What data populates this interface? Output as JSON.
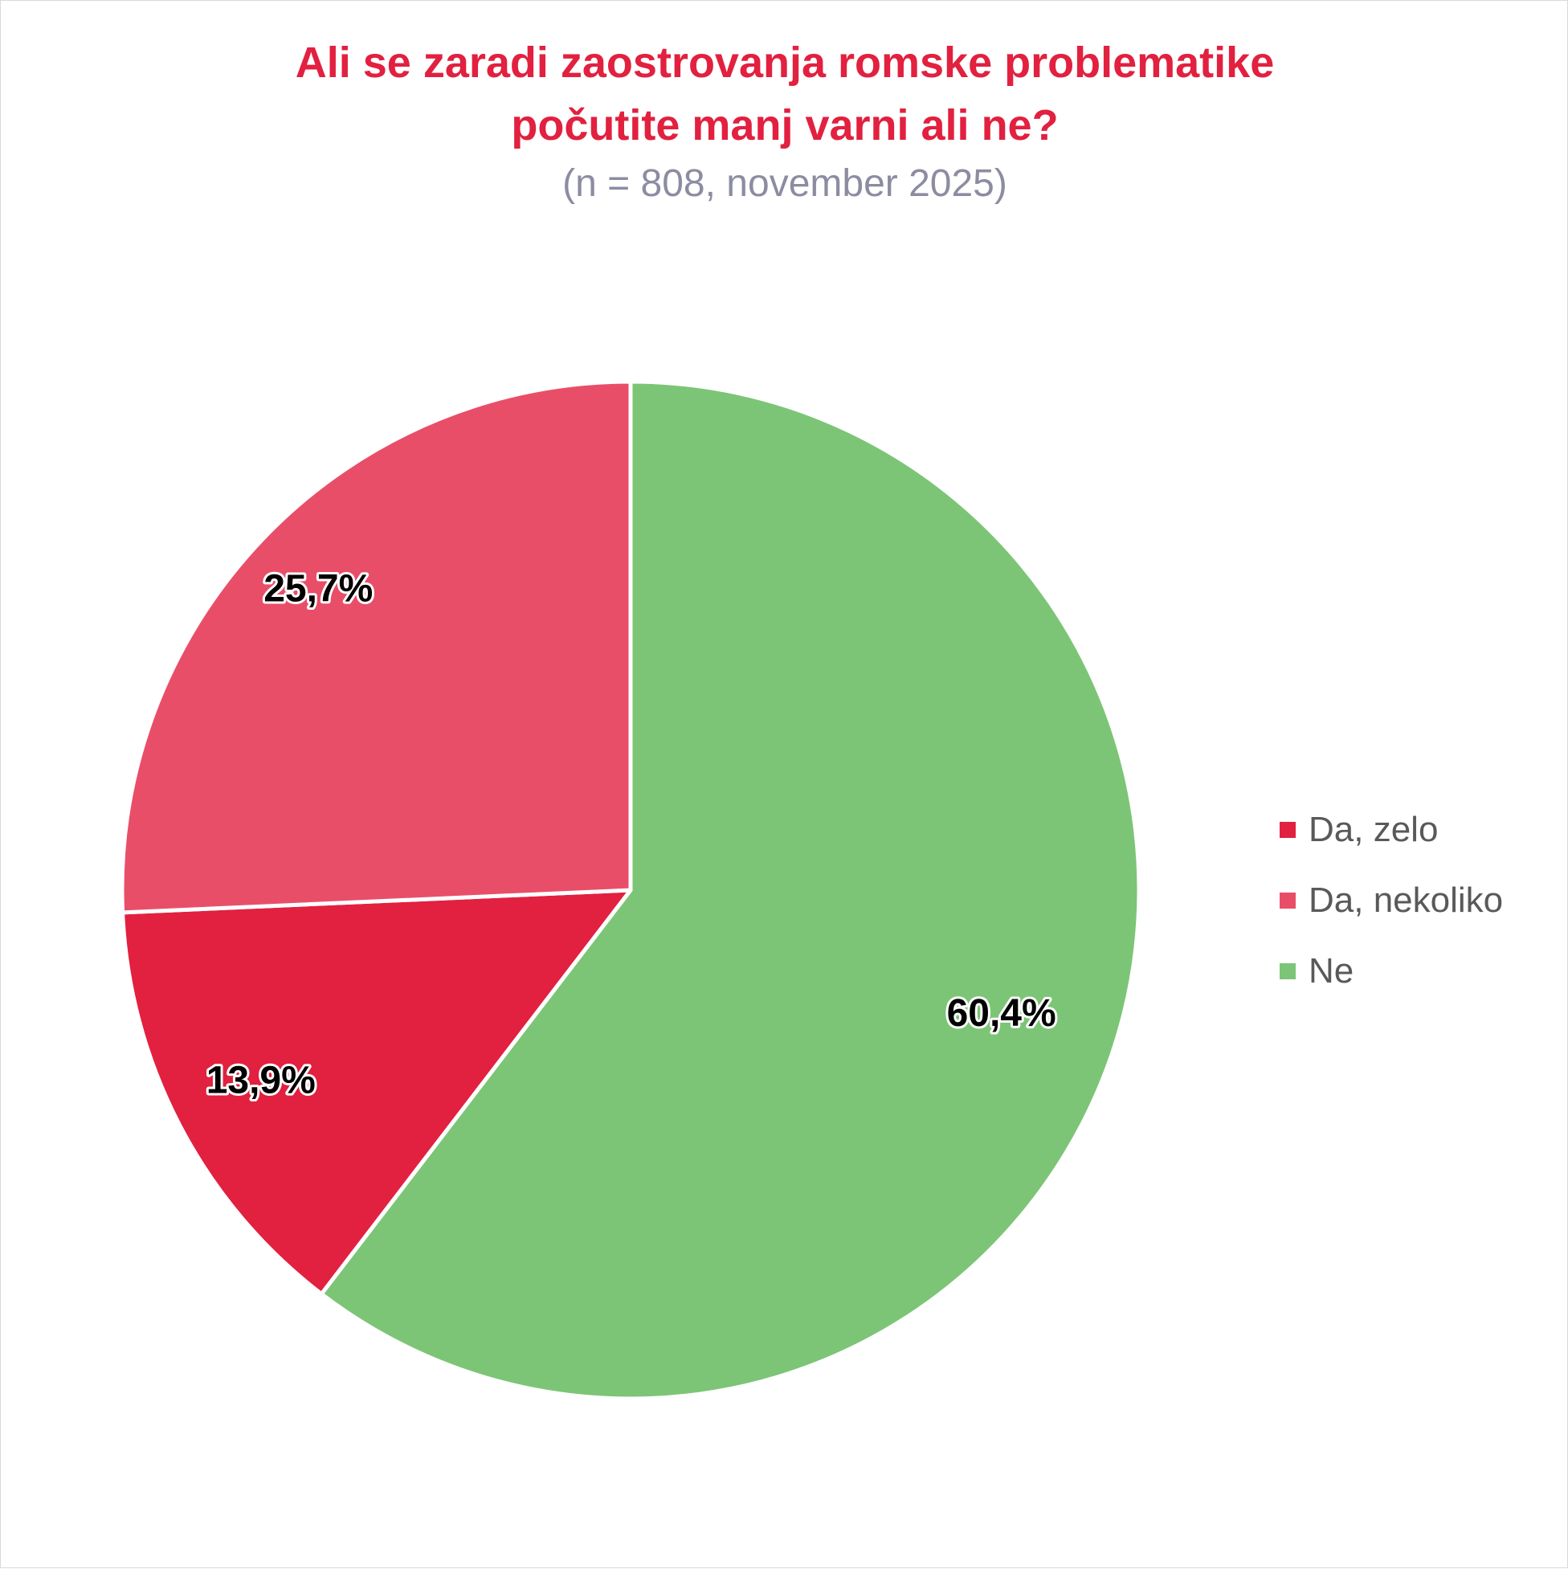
{
  "chart_data": {
    "type": "pie",
    "title_line1": "Ali se zaradi zaostrovanja romske problematike",
    "title_line2": "počutite manj varni ali ne?",
    "subtitle": "(n = 808, november 2025)",
    "legend_position": "right",
    "slices": [
      {
        "name": "Da, zelo",
        "value": 13.9,
        "label": "13,9%",
        "color": "#e2203f"
      },
      {
        "name": "Da, nekoliko",
        "value": 25.7,
        "label": "25,7%",
        "color": "#e94e69"
      },
      {
        "name": "Ne",
        "value": 60.4,
        "label": "60,4%",
        "color": "#7cc576"
      }
    ]
  }
}
